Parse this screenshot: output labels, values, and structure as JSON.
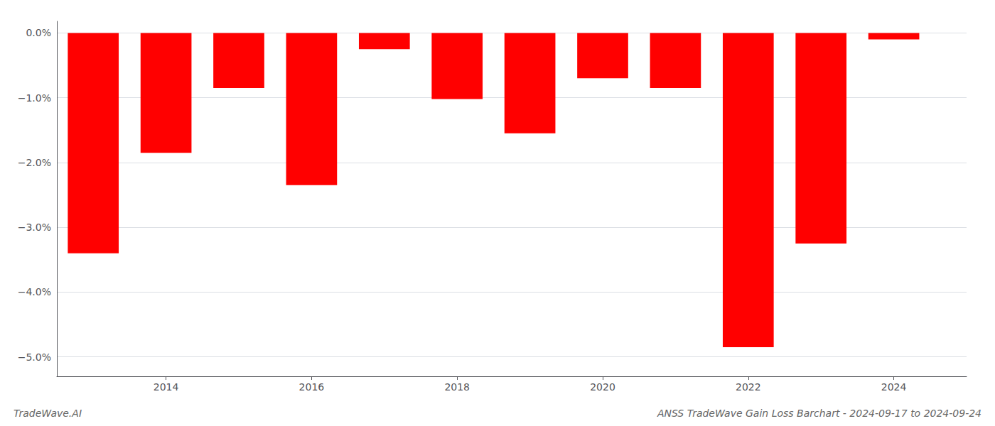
{
  "chart_data": {
    "type": "bar",
    "title": "ANSS TradeWave Gain Loss Barchart - 2024-09-17 to 2024-09-24",
    "annotations": [
      "TradeWave.AI"
    ],
    "x": [
      2013,
      2014,
      2015,
      2016,
      2017,
      2018,
      2019,
      2020,
      2021,
      2022,
      2023,
      2024
    ],
    "values": [
      -3.4,
      -1.85,
      -0.85,
      -2.35,
      -0.25,
      -1.02,
      -1.55,
      -0.7,
      -0.85,
      -4.85,
      -3.25,
      -0.1
    ],
    "color": "#ff0000",
    "xlim": [
      2012.5,
      2025.0
    ],
    "xticks": [
      2014,
      2016,
      2018,
      2020,
      2022,
      2024
    ],
    "ylim": [
      -5.3,
      0.18
    ],
    "yticks": [
      {
        "value": 0.0,
        "label": "0.0%"
      },
      {
        "value": -1.0,
        "label": "−1.0%"
      },
      {
        "value": -2.0,
        "label": "−2.0%"
      },
      {
        "value": -3.0,
        "label": "−3.0%"
      },
      {
        "value": -4.0,
        "label": "−4.0%"
      },
      {
        "value": -5.0,
        "label": "−5.0%"
      }
    ],
    "grid": true
  }
}
